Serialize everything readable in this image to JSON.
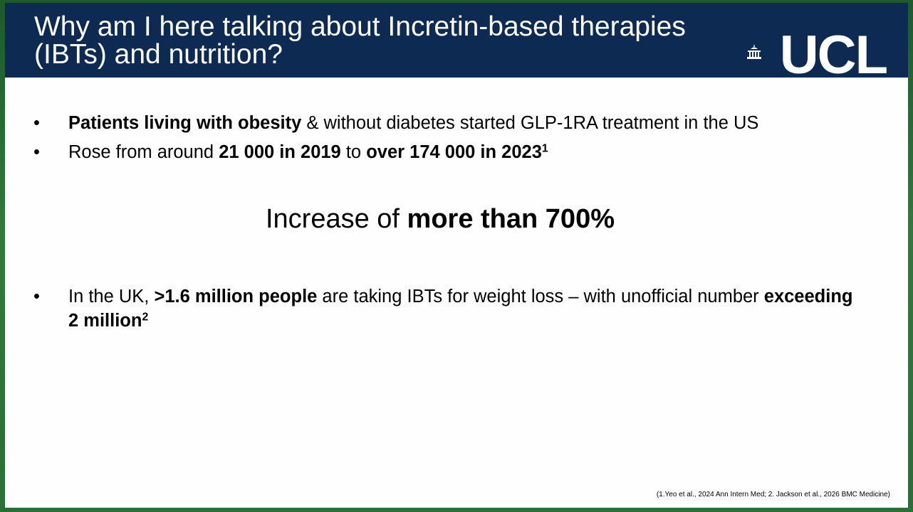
{
  "header": {
    "title": "Why am I here talking about Incretin-based therapies (IBTs) and nutrition?",
    "logo": "UCL"
  },
  "bullets": [
    {
      "runs": [
        {
          "text": "Patients living with obesity",
          "bold": true
        },
        {
          "text": " & without diabetes started GLP-1RA treatment in the US"
        }
      ]
    },
    {
      "runs": [
        {
          "text": "Rose from around "
        },
        {
          "text": "21 000 in 2019",
          "bold": true
        },
        {
          "text": " to "
        },
        {
          "text": "over 174 000 in 2023",
          "bold": true
        },
        {
          "text": "1",
          "bold": true,
          "sup": true
        }
      ]
    }
  ],
  "highlight": {
    "runs": [
      {
        "text": "Increase of "
      },
      {
        "text": "more than 700%",
        "bold": true
      }
    ]
  },
  "bullets_2": [
    {
      "runs": [
        {
          "text": "In the UK, "
        },
        {
          "text": ">1.6 million people",
          "bold": true
        },
        {
          "text": " are taking IBTs for weight loss – with unofficial number "
        },
        {
          "text": "exceeding 2 million",
          "bold": true
        },
        {
          "text": "2",
          "bold": true,
          "sup": true
        }
      ]
    }
  ],
  "footnote": "(1.Yeo et al., 2024 Ann Intern Med; 2. Jackson et al., 2026 BMC Medicine)"
}
